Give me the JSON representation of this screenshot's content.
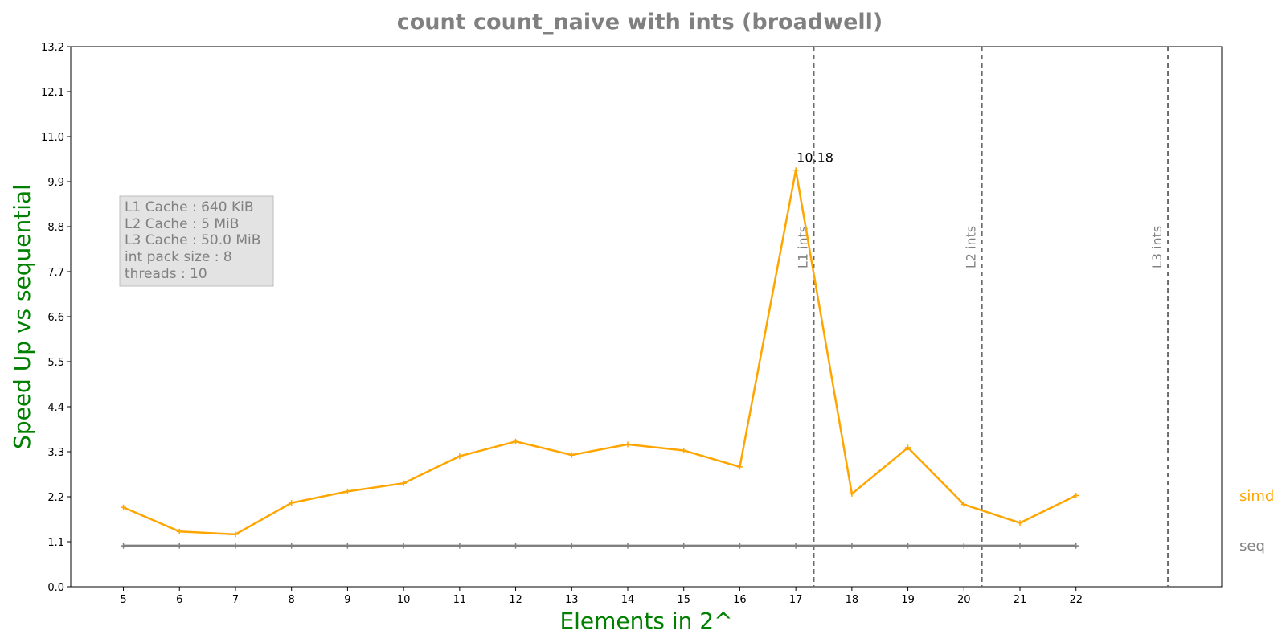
{
  "chart_data": {
    "type": "line",
    "title": "count count_naive with ints  (broadwell)",
    "xlabel": "Elements in 2^",
    "ylabel": "Speed Up vs sequential",
    "x": [
      5,
      6,
      7,
      8,
      9,
      10,
      11,
      12,
      13,
      14,
      15,
      16,
      17,
      18,
      19,
      20,
      21,
      22
    ],
    "xlim": [
      4.06,
      24.6
    ],
    "ylim": [
      0,
      13.2
    ],
    "yticks": [
      "0.0",
      "1.1",
      "2.2",
      "3.3",
      "4.4",
      "5.5",
      "6.6",
      "7.7",
      "8.8",
      "9.9",
      "11.0",
      "12.1",
      "13.2"
    ],
    "xticks": [
      "5",
      "6",
      "7",
      "8",
      "9",
      "10",
      "11",
      "12",
      "13",
      "14",
      "15",
      "16",
      "17",
      "18",
      "19",
      "20",
      "21",
      "22"
    ],
    "series": [
      {
        "name": "simd",
        "color": "#FFA500",
        "values": [
          1.94,
          1.35,
          1.28,
          2.05,
          2.33,
          2.53,
          3.19,
          3.55,
          3.22,
          3.48,
          3.33,
          2.93,
          10.18,
          2.27,
          3.4,
          2.01,
          1.56,
          2.23
        ]
      },
      {
        "name": "seq",
        "color": "#808080",
        "values": [
          1,
          1,
          1,
          1,
          1,
          1,
          1,
          1,
          1,
          1,
          1,
          1,
          1,
          1,
          1,
          1,
          1,
          1
        ]
      }
    ],
    "annotations": [
      {
        "text": "10.18",
        "x": 17,
        "y": 10.18
      }
    ],
    "vlines": [
      {
        "label": "L1 ints",
        "x": 17.32
      },
      {
        "label": "L2 ints",
        "x": 20.32
      },
      {
        "label": "L3 ints",
        "x": 23.64
      }
    ],
    "info_box": {
      "lines": [
        "L1 Cache : 640 KiB",
        "L2 Cache : 5 MiB",
        "L3 Cache : 50.0 MiB",
        "int pack size : 8",
        "threads : 10"
      ]
    },
    "grid": false,
    "legend": "right-of-plot series labels"
  },
  "colors": {
    "title": "#808080",
    "axis_label": "#008000",
    "simd": "#FFA500",
    "seq": "#808080",
    "vline": "#696969",
    "info_box_bg": "#E3E3E3",
    "info_text": "#808080"
  }
}
